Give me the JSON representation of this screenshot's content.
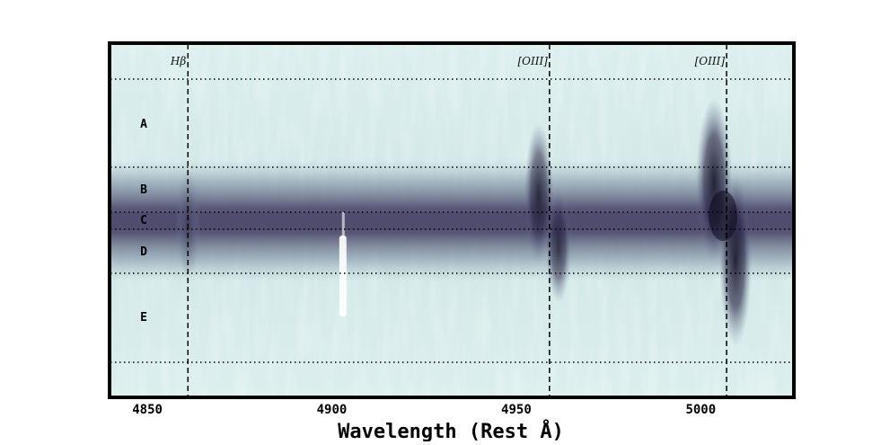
{
  "chart_data": {
    "type": "heatmap",
    "xlabel": "Wavelength (Rest Å)",
    "xlim": [
      4840,
      5025
    ],
    "x_ticks": [
      4850,
      4900,
      4950,
      5000
    ],
    "emission_lines": [
      {
        "label": "Hβ",
        "wavelength": 4861
      },
      {
        "label": "[OIII]",
        "wavelength": 4959
      },
      {
        "label": "[OIII]",
        "wavelength": 5007
      }
    ],
    "regions": [
      {
        "label": "A"
      },
      {
        "label": "B"
      },
      {
        "label": "C"
      },
      {
        "label": "D"
      },
      {
        "label": "E"
      }
    ],
    "grid": false,
    "colors": {
      "background_low": "#d8ecec",
      "continuum": "#5a5878",
      "line_peak": "#0c0a1e",
      "frame": "#000000"
    }
  }
}
